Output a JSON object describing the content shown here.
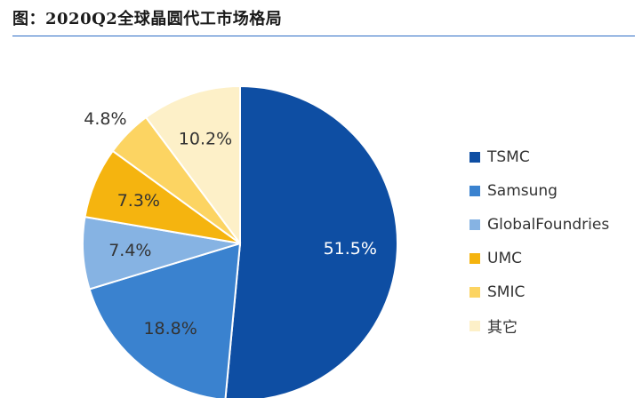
{
  "title": "图：2020Q2全球晶圆代工市场格局",
  "chart_data": {
    "type": "pie",
    "start_angle_deg": 0,
    "direction": "clockwise",
    "legend_position": "right",
    "slices": [
      {
        "name": "TSMC",
        "value": 51.5,
        "label": "51.5%",
        "color": "#0e4ea3",
        "label_color": "#ffffff"
      },
      {
        "name": "Samsung",
        "value": 18.8,
        "label": "18.8%",
        "color": "#3a82cf",
        "label_color": "#333333"
      },
      {
        "name": "GlobalFoundries",
        "value": 7.4,
        "label": "7.4%",
        "color": "#86b3e3",
        "label_color": "#333333"
      },
      {
        "name": "UMC",
        "value": 7.3,
        "label": "7.3%",
        "color": "#f5b40f",
        "label_color": "#333333"
      },
      {
        "name": "SMIC",
        "value": 4.8,
        "label": "4.8%",
        "color": "#fcd462",
        "label_color": "#333333"
      },
      {
        "name": "其它",
        "value": 10.2,
        "label": "10.2%",
        "color": "#fdf0c8",
        "label_color": "#333333"
      }
    ]
  }
}
